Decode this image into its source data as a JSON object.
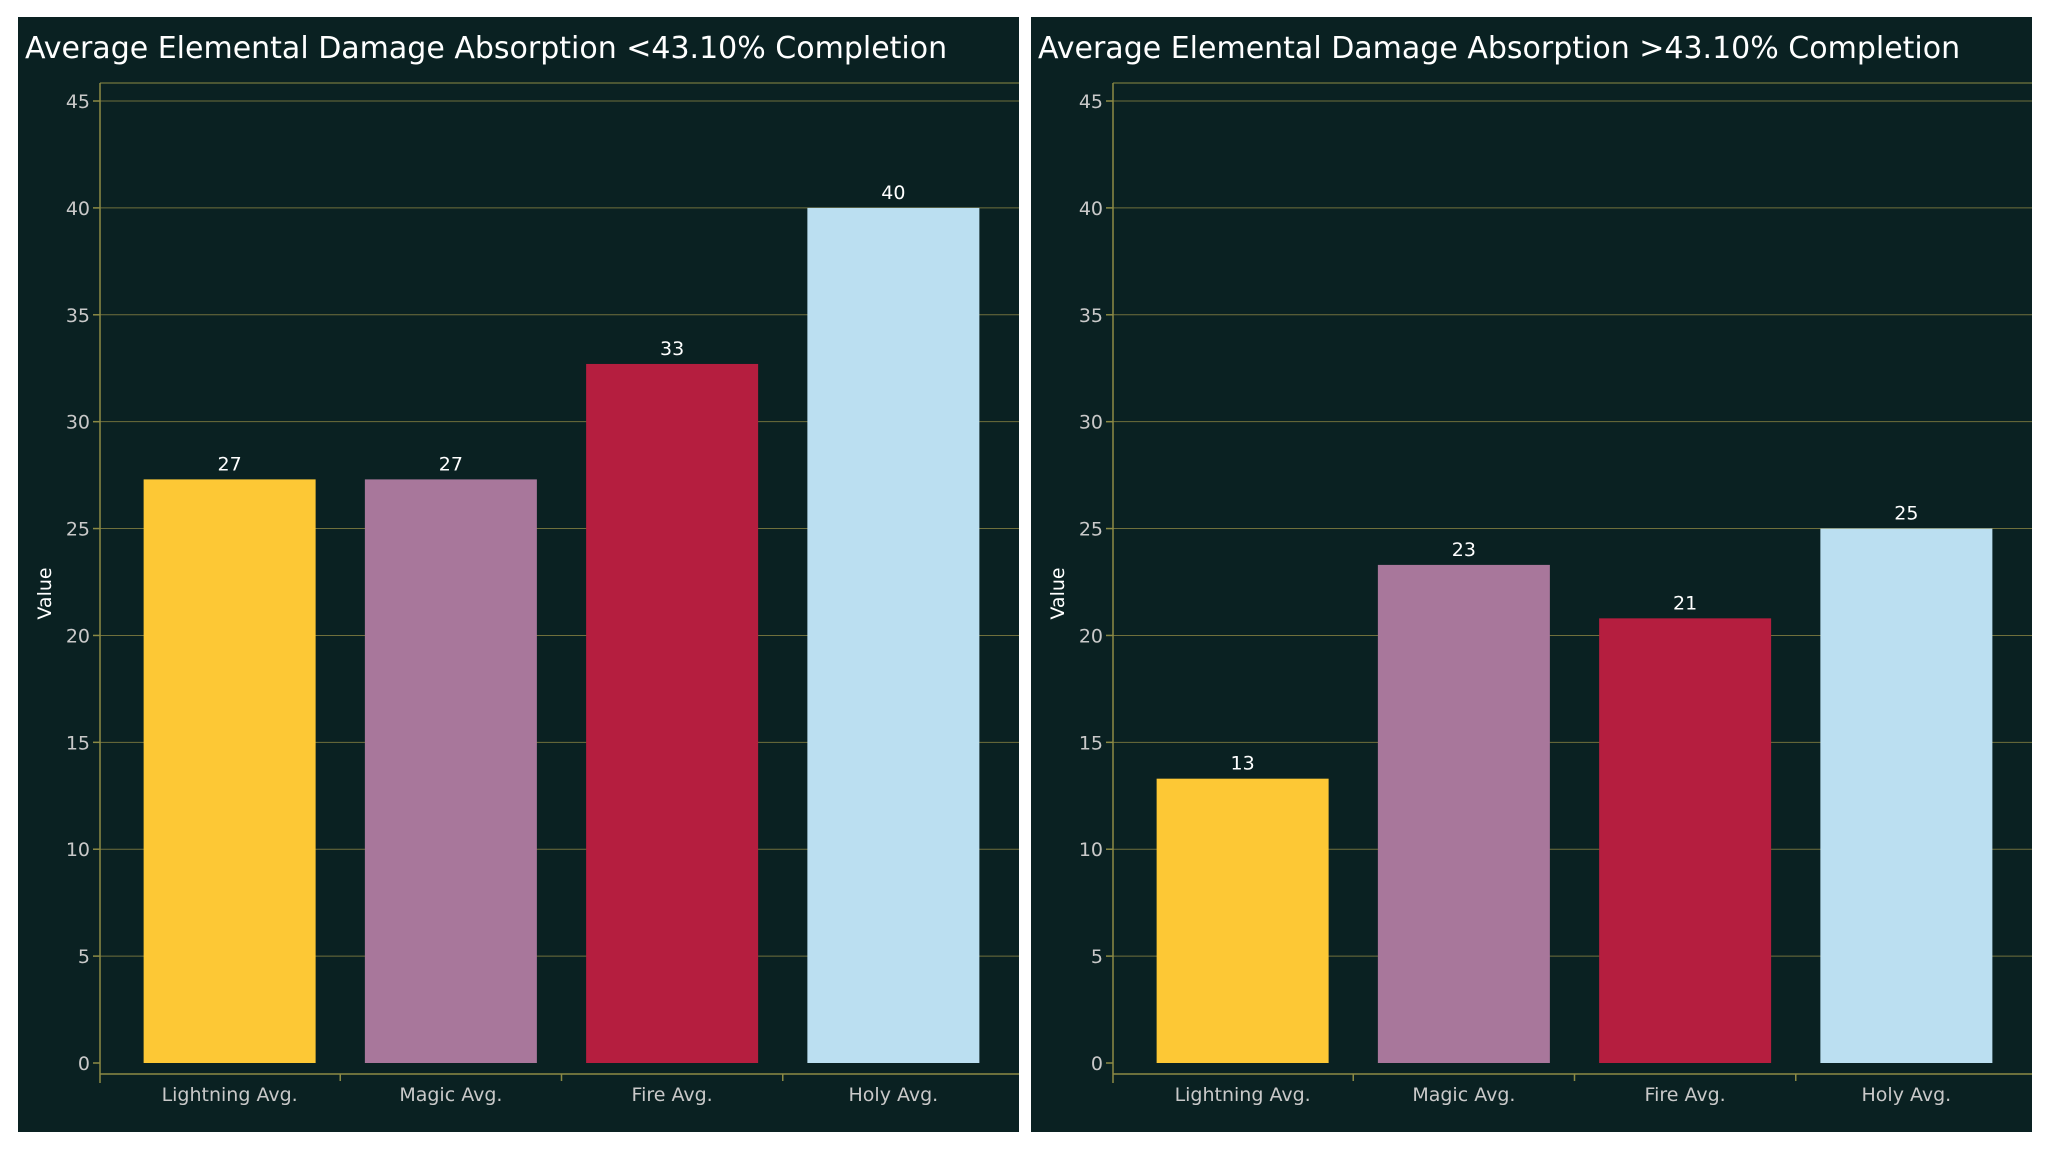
{
  "chart_data": [
    {
      "type": "bar",
      "title": "Average Elemental Damage Absorption <43.10% Completion",
      "categories": [
        "Lightning Avg.",
        "Magic Avg.",
        "Fire Avg.",
        "Holy Avg."
      ],
      "values": [
        27.3,
        27.3,
        32.7,
        40.0
      ],
      "data_labels": [
        "27",
        "27",
        "33",
        "40"
      ],
      "colors": [
        "#fdc835",
        "#a8779b",
        "#b51e3f",
        "#bbdff1"
      ],
      "ylabel": "Value",
      "xlabel": "",
      "ylim": [
        0,
        45
      ],
      "yticks": [
        0,
        5,
        10,
        15,
        20,
        25,
        30,
        35,
        40,
        45
      ],
      "grid": true
    },
    {
      "type": "bar",
      "title": "Average Elemental Damage Absorption >43.10% Completion",
      "categories": [
        "Lightning Avg.",
        "Magic Avg.",
        "Fire Avg.",
        "Holy Avg."
      ],
      "values": [
        13.3,
        23.3,
        20.8,
        25.0
      ],
      "data_labels": [
        "13",
        "23",
        "21",
        "25"
      ],
      "colors": [
        "#fdc835",
        "#a8779b",
        "#b51e3f",
        "#bbdff1"
      ],
      "ylabel": "Value",
      "xlabel": "",
      "ylim": [
        0,
        45
      ],
      "yticks": [
        0,
        5,
        10,
        15,
        20,
        25,
        30,
        35,
        40,
        45
      ],
      "grid": true
    }
  ],
  "theme": {
    "background": "#0a2122",
    "gridline": "#6f6f3c",
    "axis_line": "#8c8a44"
  }
}
